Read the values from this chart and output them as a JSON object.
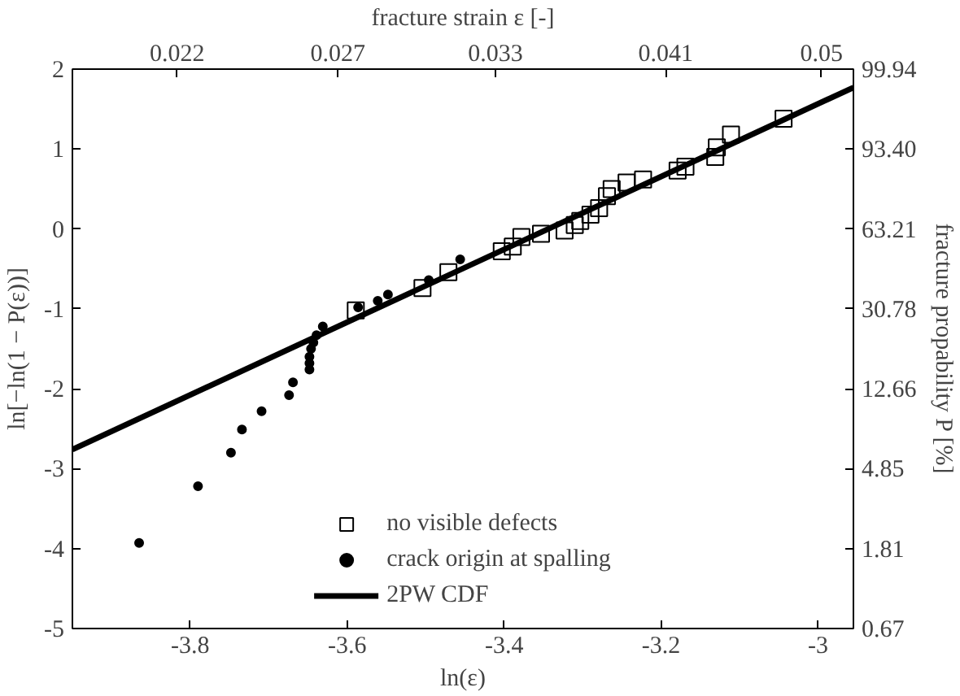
{
  "chart_data": {
    "type": "scatter",
    "xlabel": "ln(ε)",
    "ylabel": "ln[−ln(1 − P(ε))]",
    "x2label": "fracture strain ε [-]",
    "y2label": "fracture propability P [%]",
    "xlim": [
      -3.95,
      -2.955
    ],
    "xticks": [
      -3.8,
      -3.6,
      -3.4,
      -3.2,
      {
        "value": -3,
        "label": "-3"
      }
    ],
    "ylim": [
      -5,
      2
    ],
    "yticks": [
      -5,
      -4,
      -3,
      -2,
      -1,
      0,
      1,
      2
    ],
    "x2lim": [
      0.01925,
      0.05208
    ],
    "x2ticks": [
      0.022,
      0.027,
      0.033,
      0.041,
      0.05
    ],
    "log": "x2",
    "y2_categories": [
      "99.94",
      "93.40",
      "63.21",
      "30.78",
      "12.66",
      "4.85",
      "1.81",
      "0.67"
    ],
    "grid": false,
    "legend": "bottom",
    "series": [
      {
        "name": "no visible defects",
        "marker": "square",
        "color": "#000000",
        "x": [
          -3.589,
          -3.504,
          -3.471,
          -3.403,
          -3.389,
          -3.378,
          -3.353,
          -3.323,
          -3.31,
          -3.303,
          -3.29,
          -3.279,
          -3.269,
          -3.263,
          -3.244,
          -3.223,
          -3.179,
          -3.169,
          -3.131,
          -3.129,
          -3.111,
          -3.044
        ],
        "values": [
          -1.02,
          -0.74,
          -0.54,
          -0.28,
          -0.22,
          -0.1,
          -0.06,
          -0.02,
          0.05,
          0.1,
          0.18,
          0.26,
          0.41,
          0.5,
          0.58,
          0.62,
          0.73,
          0.78,
          0.9,
          1.02,
          1.18,
          1.38
        ]
      },
      {
        "name": "crack origin at spalling",
        "marker": "circle",
        "color": "#000000",
        "x": [
          -3.865,
          -3.79,
          -3.748,
          -3.734,
          -3.709,
          -3.674,
          -3.669,
          -3.648,
          -3.648,
          -3.648,
          -3.646,
          -3.643,
          -3.639,
          -3.631,
          -3.586,
          -3.561,
          -3.548,
          -3.496,
          -3.456
        ],
        "values": [
          -3.93,
          -3.22,
          -2.8,
          -2.51,
          -2.28,
          -2.08,
          -1.92,
          -1.76,
          -1.68,
          -1.6,
          -1.5,
          -1.42,
          -1.33,
          -1.22,
          -0.98,
          -0.9,
          -0.82,
          -0.64,
          -0.38
        ]
      },
      {
        "name": "2PW CDF",
        "type": "line",
        "color": "#000000",
        "line_style": "solid",
        "x": [
          -3.95,
          -2.955
        ],
        "values": [
          -2.76,
          1.77
        ]
      }
    ]
  }
}
